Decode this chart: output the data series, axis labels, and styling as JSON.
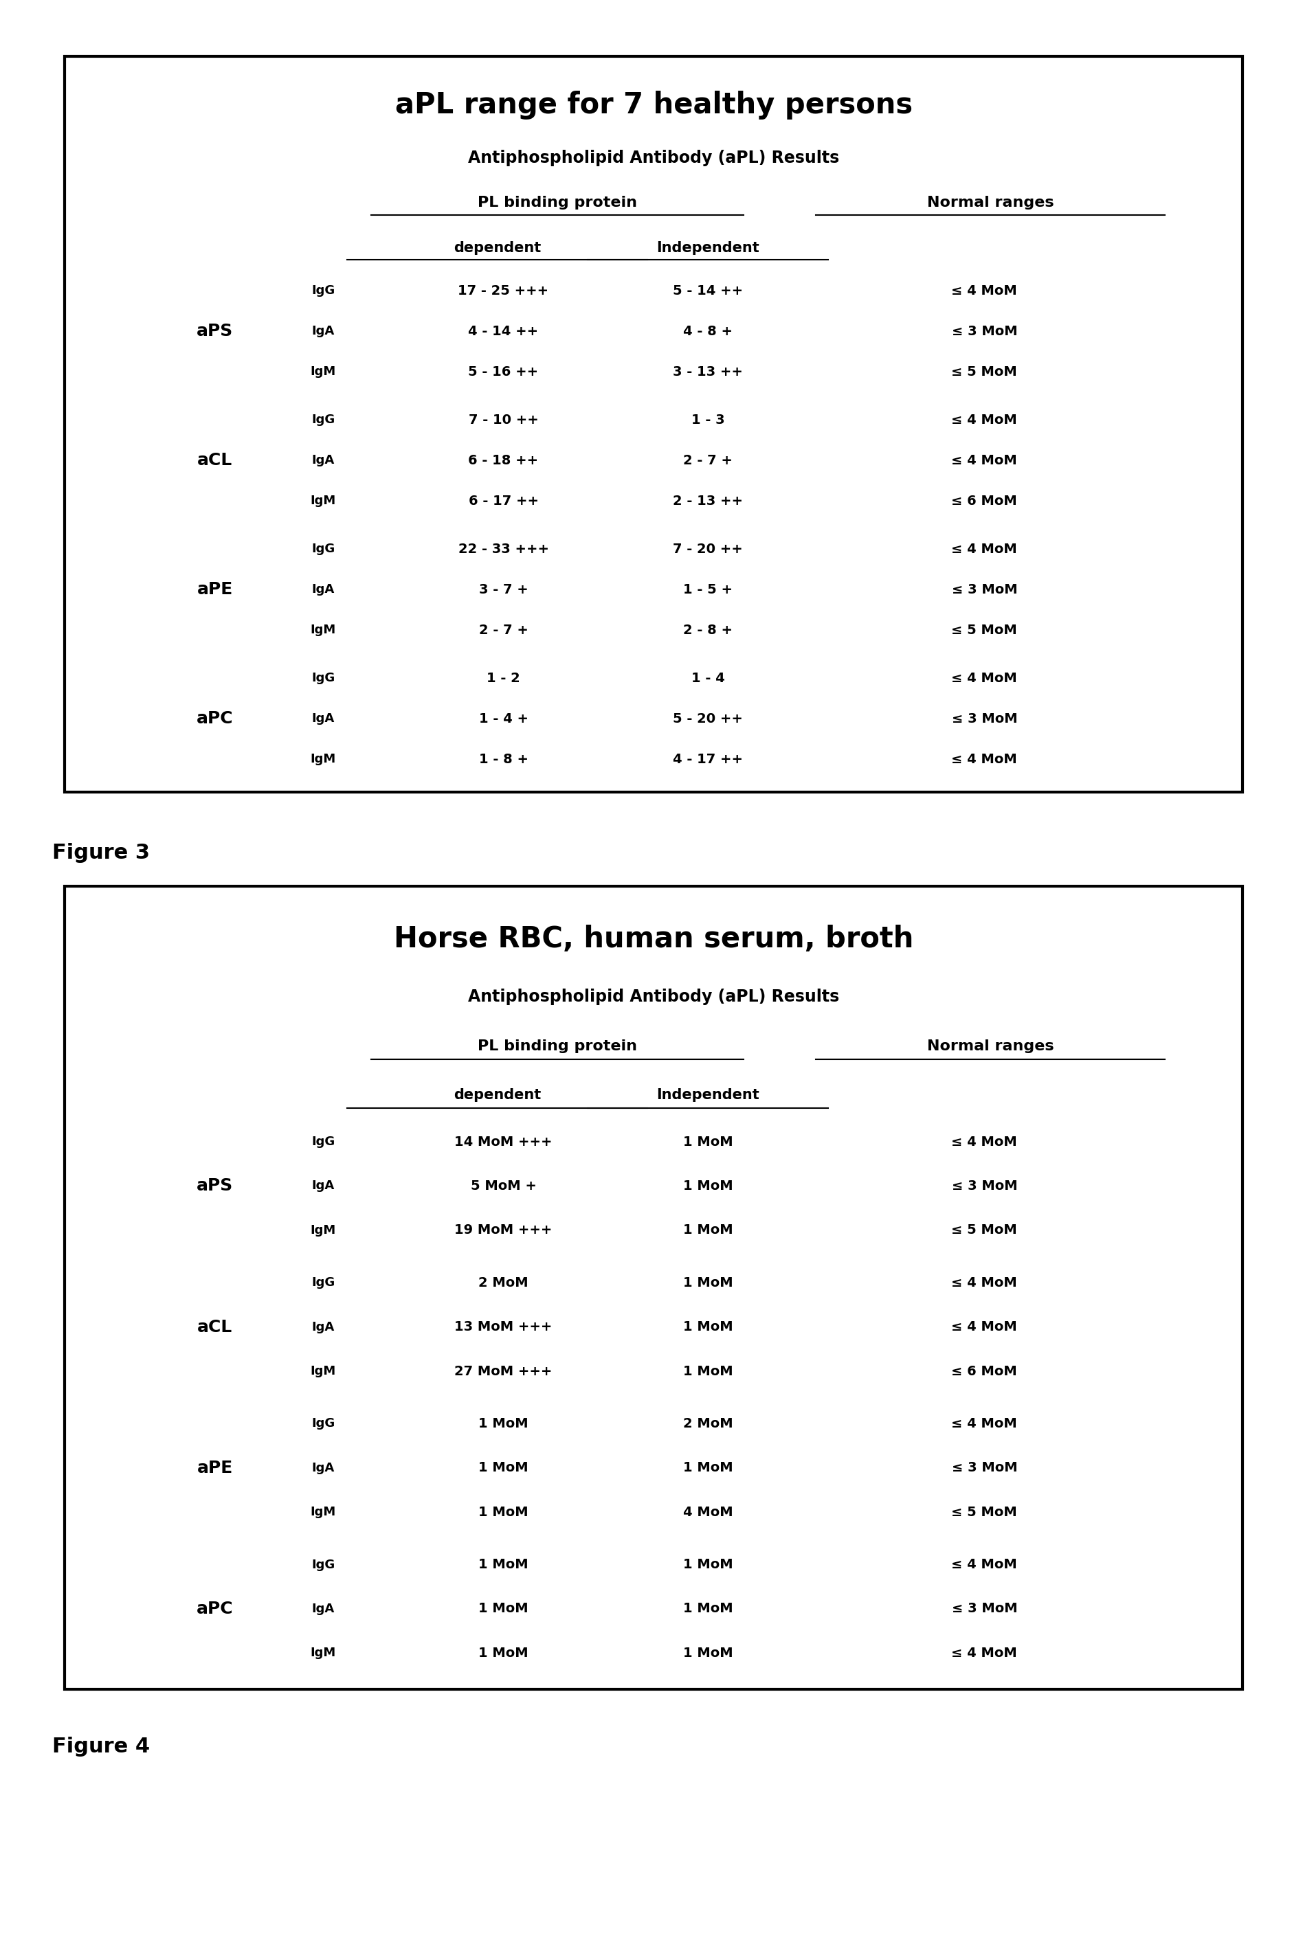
{
  "fig1": {
    "title": "aPL range for 7 healthy persons",
    "subtitle": "Antiphospholipid Antibody (aPL) Results",
    "col1_header": "PL binding protein",
    "col2_header": "Normal ranges",
    "subcol1": "dependent",
    "subcol2": "Independent",
    "groups": [
      {
        "name": "aPS",
        "rows": [
          {
            "ig": "IgG",
            "dep": "17 - 25 +++",
            "indep": "5 - 14 ++",
            "norm": "≤ 4 MoM"
          },
          {
            "ig": "IgA",
            "dep": "4 - 14 ++",
            "indep": "4 - 8 +",
            "norm": "≤ 3 MoM"
          },
          {
            "ig": "IgM",
            "dep": "5 - 16 ++",
            "indep": "3 - 13 ++",
            "norm": "≤ 5 MoM"
          }
        ]
      },
      {
        "name": "aCL",
        "rows": [
          {
            "ig": "IgG",
            "dep": "7 - 10 ++",
            "indep": "1 - 3",
            "norm": "≤ 4 MoM"
          },
          {
            "ig": "IgA",
            "dep": "6 - 18 ++",
            "indep": "2 - 7 +",
            "norm": "≤ 4 MoM"
          },
          {
            "ig": "IgM",
            "dep": "6 - 17 ++",
            "indep": "2 - 13 ++",
            "norm": "≤ 6 MoM"
          }
        ]
      },
      {
        "name": "aPE",
        "rows": [
          {
            "ig": "IgG",
            "dep": "22 - 33 +++",
            "indep": "7 - 20 ++",
            "norm": "≤ 4 MoM"
          },
          {
            "ig": "IgA",
            "dep": "3 - 7 +",
            "indep": "1 - 5 +",
            "norm": "≤ 3 MoM"
          },
          {
            "ig": "IgM",
            "dep": "2 - 7 +",
            "indep": "2 - 8 +",
            "norm": "≤ 5 MoM"
          }
        ]
      },
      {
        "name": "aPC",
        "rows": [
          {
            "ig": "IgG",
            "dep": "1 - 2",
            "indep": "1 - 4",
            "norm": "≤ 4 MoM"
          },
          {
            "ig": "IgA",
            "dep": "1 - 4 +",
            "indep": "5 - 20 ++",
            "norm": "≤ 3 MoM"
          },
          {
            "ig": "IgM",
            "dep": "1 - 8 +",
            "indep": "4 - 17 ++",
            "norm": "≤ 4 MoM"
          }
        ]
      }
    ]
  },
  "fig2": {
    "title": "Horse RBC, human serum, broth",
    "subtitle": "Antiphospholipid Antibody (aPL) Results",
    "col1_header": "PL binding protein",
    "col2_header": "Normal ranges",
    "subcol1": "dependent",
    "subcol2": "Independent",
    "groups": [
      {
        "name": "aPS",
        "rows": [
          {
            "ig": "IgG",
            "dep": "14 MoM +++",
            "indep": "1 MoM",
            "norm": "≤ 4 MoM"
          },
          {
            "ig": "IgA",
            "dep": "5 MoM +",
            "indep": "1 MoM",
            "norm": "≤ 3 MoM"
          },
          {
            "ig": "IgM",
            "dep": "19 MoM +++",
            "indep": "1 MoM",
            "norm": "≤ 5 MoM"
          }
        ]
      },
      {
        "name": "aCL",
        "rows": [
          {
            "ig": "IgG",
            "dep": "2 MoM",
            "indep": "1 MoM",
            "norm": "≤ 4 MoM"
          },
          {
            "ig": "IgA",
            "dep": "13 MoM +++",
            "indep": "1 MoM",
            "norm": "≤ 4 MoM"
          },
          {
            "ig": "IgM",
            "dep": "27 MoM +++",
            "indep": "1 MoM",
            "norm": "≤ 6 MoM"
          }
        ]
      },
      {
        "name": "aPE",
        "rows": [
          {
            "ig": "IgG",
            "dep": "1 MoM",
            "indep": "2 MoM",
            "norm": "≤ 4 MoM"
          },
          {
            "ig": "IgA",
            "dep": "1 MoM",
            "indep": "1 MoM",
            "norm": "≤ 3 MoM"
          },
          {
            "ig": "IgM",
            "dep": "1 MoM",
            "indep": "4 MoM",
            "norm": "≤ 5 MoM"
          }
        ]
      },
      {
        "name": "aPC",
        "rows": [
          {
            "ig": "IgG",
            "dep": "1 MoM",
            "indep": "1 MoM",
            "norm": "≤ 4 MoM"
          },
          {
            "ig": "IgA",
            "dep": "1 MoM",
            "indep": "1 MoM",
            "norm": "≤ 3 MoM"
          },
          {
            "ig": "IgM",
            "dep": "1 MoM",
            "indep": "1 MoM",
            "norm": "≤ 4 MoM"
          }
        ]
      }
    ]
  },
  "figure_labels": [
    "Figure 3",
    "Figure 4"
  ],
  "background_color": "#ffffff"
}
